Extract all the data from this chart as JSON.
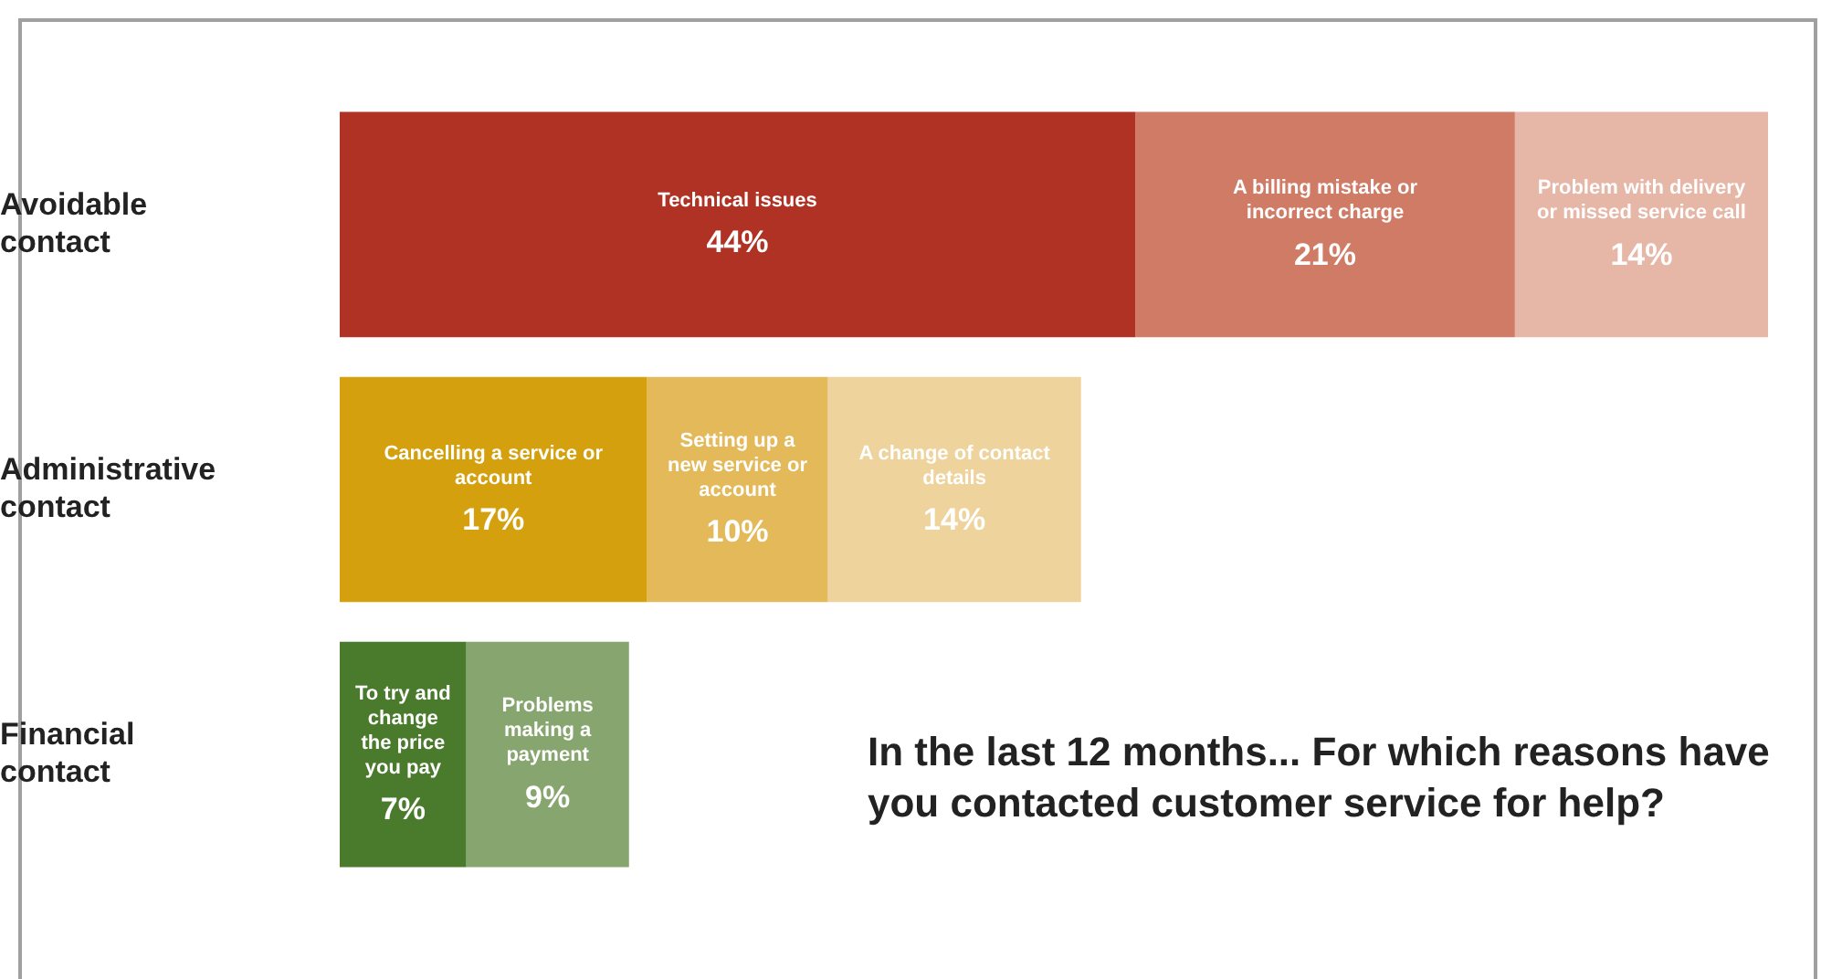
{
  "chart_data": {
    "type": "bar",
    "orientation": "horizontal",
    "stacked": true,
    "title": "In the last 12 months...  For which reasons have you contacted customer service for help?",
    "categories": [
      "Avoidable contact",
      "Administrative contact",
      "Financial contact"
    ],
    "series": [
      {
        "name": "Technical issues",
        "color": "#b03225",
        "values": [
          44,
          null,
          null
        ],
        "value_labels": [
          "44%",
          null,
          null
        ]
      },
      {
        "name": "A billing mistake or incorrect charge",
        "color": "#d07b66",
        "values": [
          21,
          null,
          null
        ],
        "value_labels": [
          "21%",
          null,
          null
        ]
      },
      {
        "name": "Problem with delivery or missed service call",
        "color": "#e6b6a6",
        "values": [
          14,
          null,
          null
        ],
        "value_labels": [
          "14%",
          null,
          null
        ]
      },
      {
        "name": "Cancelling a service or account",
        "color": "#d4a00e",
        "values": [
          null,
          17,
          null
        ],
        "value_labels": [
          null,
          "17%",
          null
        ]
      },
      {
        "name": "Setting up a new service or account",
        "color": "#e3b95a",
        "values": [
          null,
          10,
          null
        ],
        "value_labels": [
          null,
          "10%",
          null
        ]
      },
      {
        "name": "A change of contact details",
        "color": "#eed39d",
        "values": [
          null,
          14,
          null
        ],
        "value_labels": [
          null,
          "14%",
          null
        ]
      },
      {
        "name": "To try and change the price you pay",
        "color": "#4a7a2c",
        "values": [
          null,
          null,
          7
        ],
        "value_labels": [
          null,
          null,
          "7%"
        ]
      },
      {
        "name": "Problems making a payment",
        "color": "#87a56e",
        "values": [
          null,
          null,
          9
        ],
        "value_labels": [
          null,
          null,
          "9%"
        ]
      }
    ]
  }
}
